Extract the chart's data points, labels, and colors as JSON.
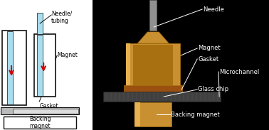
{
  "bg_color": "#ffffff",
  "colors": {
    "cyan_tube": "#aaddee",
    "dark_outline": "#111111",
    "gray_strip": "#bbbbbb",
    "light_gray": "#dddddd",
    "red_arrow": "#cc0000",
    "white": "#ffffff",
    "black": "#000000",
    "gold1": "#c89030",
    "gold2": "#a87010",
    "gold3": "#e8b050",
    "steel": "#909090",
    "steel2": "#606060",
    "copper_brown": "#9a5010",
    "dark_glass": "#404040"
  },
  "labels": {
    "needle_tubing": "Needle/\ntubing",
    "magnet": "Magnet",
    "gasket": "Gasket",
    "backing_magnet": "Backing\nmagnet",
    "needle": "Needle",
    "magnet_r": "Magnet",
    "gasket_r": "Gasket",
    "microchannel": "Microchannel",
    "glass_chip": "Glass chip",
    "backing_magnet_r": "Backing magnet"
  }
}
